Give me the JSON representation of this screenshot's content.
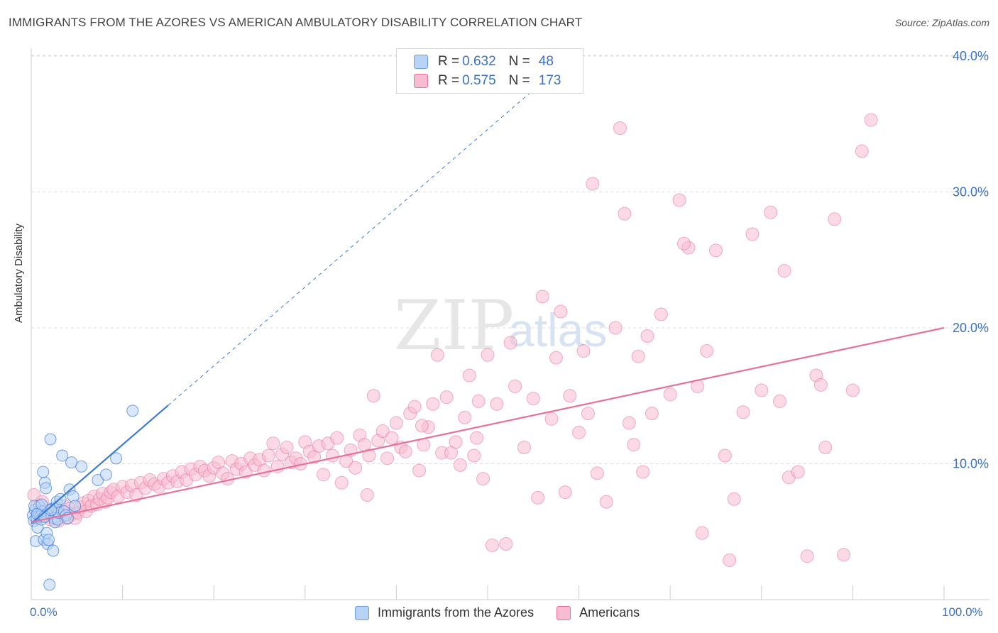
{
  "title": "IMMIGRANTS FROM THE AZORES VS AMERICAN AMBULATORY DISABILITY CORRELATION CHART",
  "source": "Source: ZipAtlas.com",
  "watermark": {
    "zip": "ZIP",
    "atlas": "atlas"
  },
  "colors": {
    "blue": "#3a7bd5",
    "blue_fill": "#b8d3f5",
    "pink": "#e8709a",
    "pink_fill": "#f7bcd0",
    "axis_text": "#3a72c4",
    "grid": "#dcdcdc"
  },
  "legend": {
    "series": [
      {
        "r_label": "R =",
        "r_value": "0.632",
        "n_label": "N =",
        "n_value": "48"
      },
      {
        "r_label": "R =",
        "r_value": "0.575",
        "n_label": "N =",
        "n_value": "173"
      }
    ]
  },
  "chart_data": {
    "type": "scatter",
    "title": "IMMIGRANTS FROM THE AZORES VS AMERICAN AMBULATORY DISABILITY CORRELATION CHART",
    "xlabel": "",
    "ylabel": "Ambulatory Disability",
    "xlim": [
      0,
      100
    ],
    "ylim": [
      0,
      41
    ],
    "x_tick_labels": [
      "0.0%",
      "100.0%"
    ],
    "y_ticks": [
      10,
      20,
      30,
      40
    ],
    "y_tick_labels": [
      "10.0%",
      "20.0%",
      "30.0%",
      "40.0%"
    ],
    "grid": true,
    "legend_position": "bottom",
    "series": [
      {
        "name": "Immigrants from the Azores",
        "color": "#3a7bd5",
        "trend": {
          "x0": 0,
          "y0": 5.6,
          "x1": 15,
          "y1": 14.3,
          "dashed_to_x": 55
        },
        "points": [
          [
            0.2,
            6.2
          ],
          [
            0.3,
            5.8
          ],
          [
            0.4,
            6.6
          ],
          [
            0.5,
            4.3
          ],
          [
            0.6,
            6.0
          ],
          [
            0.7,
            5.3
          ],
          [
            0.8,
            6.4
          ],
          [
            0.9,
            6.9
          ],
          [
            1.0,
            6.1
          ],
          [
            1.1,
            5.9
          ],
          [
            1.2,
            6.5
          ],
          [
            1.3,
            9.4
          ],
          [
            1.4,
            4.4
          ],
          [
            1.5,
            8.6
          ],
          [
            1.6,
            8.2
          ],
          [
            1.7,
            4.9
          ],
          [
            1.8,
            4.1
          ],
          [
            1.9,
            4.4
          ],
          [
            2.0,
            1.1
          ],
          [
            2.1,
            11.8
          ],
          [
            2.2,
            6.3
          ],
          [
            2.3,
            6.7
          ],
          [
            2.4,
            3.6
          ],
          [
            2.5,
            6.0
          ],
          [
            2.6,
            5.7
          ],
          [
            2.7,
            6.8
          ],
          [
            2.8,
            7.2
          ],
          [
            2.9,
            5.9
          ],
          [
            3.0,
            6.4
          ],
          [
            3.2,
            7.4
          ],
          [
            3.4,
            10.6
          ],
          [
            3.6,
            6.5
          ],
          [
            3.8,
            6.2
          ],
          [
            4.0,
            6.0
          ],
          [
            4.2,
            8.1
          ],
          [
            4.4,
            10.1
          ],
          [
            4.6,
            7.6
          ],
          [
            4.8,
            6.9
          ],
          [
            5.5,
            9.8
          ],
          [
            7.3,
            8.8
          ],
          [
            8.2,
            9.2
          ],
          [
            9.3,
            10.4
          ],
          [
            11.1,
            13.9
          ],
          [
            0.35,
            6.9
          ],
          [
            0.65,
            6.3
          ],
          [
            1.15,
            7.0
          ],
          [
            1.45,
            6.1
          ],
          [
            2.15,
            6.6
          ]
        ]
      },
      {
        "name": "Americans",
        "color": "#e8709a",
        "trend": {
          "x0": 0,
          "y0": 5.7,
          "x1": 100,
          "y1": 20.0
        },
        "points": [
          [
            0.3,
            7.7
          ],
          [
            0.6,
            6.8
          ],
          [
            0.9,
            6.2
          ],
          [
            1.2,
            7.2
          ],
          [
            1.5,
            6.5
          ],
          [
            1.8,
            6.1
          ],
          [
            2.1,
            5.9
          ],
          [
            2.4,
            6.6
          ],
          [
            2.7,
            6.2
          ],
          [
            3.0,
            5.8
          ],
          [
            3.3,
            6.4
          ],
          [
            3.6,
            6.9
          ],
          [
            3.9,
            6.0
          ],
          [
            4.2,
            6.7
          ],
          [
            4.5,
            6.3
          ],
          [
            4.8,
            6.0
          ],
          [
            5.1,
            6.4
          ],
          [
            5.4,
            6.8
          ],
          [
            5.7,
            7.1
          ],
          [
            6.0,
            6.5
          ],
          [
            6.3,
            7.3
          ],
          [
            6.6,
            6.9
          ],
          [
            6.9,
            7.6
          ],
          [
            7.2,
            7.0
          ],
          [
            7.5,
            7.4
          ],
          [
            7.8,
            7.8
          ],
          [
            8.1,
            7.2
          ],
          [
            8.4,
            7.5
          ],
          [
            8.7,
            7.9
          ],
          [
            9.0,
            8.1
          ],
          [
            9.5,
            7.6
          ],
          [
            10.0,
            8.3
          ],
          [
            10.5,
            7.9
          ],
          [
            11.0,
            8.4
          ],
          [
            11.5,
            7.7
          ],
          [
            12.0,
            8.6
          ],
          [
            12.5,
            8.2
          ],
          [
            13.0,
            8.8
          ],
          [
            13.5,
            8.5
          ],
          [
            14.0,
            8.3
          ],
          [
            14.5,
            8.9
          ],
          [
            15.0,
            8.6
          ],
          [
            15.5,
            9.1
          ],
          [
            16.0,
            8.7
          ],
          [
            16.5,
            9.4
          ],
          [
            17.0,
            8.8
          ],
          [
            17.5,
            9.6
          ],
          [
            18.0,
            9.2
          ],
          [
            18.5,
            9.8
          ],
          [
            19.0,
            9.5
          ],
          [
            19.5,
            9.1
          ],
          [
            20.0,
            9.7
          ],
          [
            20.5,
            10.1
          ],
          [
            21.0,
            9.3
          ],
          [
            21.5,
            8.9
          ],
          [
            22.0,
            10.2
          ],
          [
            22.5,
            9.6
          ],
          [
            23.0,
            10.0
          ],
          [
            23.5,
            9.4
          ],
          [
            24.0,
            10.4
          ],
          [
            24.5,
            9.9
          ],
          [
            25.0,
            10.3
          ],
          [
            25.5,
            9.5
          ],
          [
            26.0,
            10.6
          ],
          [
            26.5,
            11.5
          ],
          [
            27.0,
            9.8
          ],
          [
            27.5,
            10.7
          ],
          [
            28.0,
            11.2
          ],
          [
            28.5,
            10.1
          ],
          [
            29.0,
            10.4
          ],
          [
            29.5,
            10.0
          ],
          [
            30.0,
            11.6
          ],
          [
            30.5,
            10.9
          ],
          [
            31.0,
            10.5
          ],
          [
            31.5,
            11.3
          ],
          [
            32.0,
            9.2
          ],
          [
            32.5,
            11.5
          ],
          [
            33.0,
            10.6
          ],
          [
            33.5,
            11.9
          ],
          [
            34.0,
            8.6
          ],
          [
            34.5,
            10.2
          ],
          [
            35.0,
            11.0
          ],
          [
            35.5,
            9.7
          ],
          [
            36.0,
            12.1
          ],
          [
            36.5,
            11.4
          ],
          [
            37.0,
            10.6
          ],
          [
            37.5,
            15.0
          ],
          [
            38.0,
            11.7
          ],
          [
            38.5,
            12.4
          ],
          [
            39.0,
            10.4
          ],
          [
            39.5,
            11.9
          ],
          [
            40.0,
            13.0
          ],
          [
            40.5,
            11.2
          ],
          [
            41.0,
            10.9
          ],
          [
            41.5,
            13.7
          ],
          [
            42.0,
            14.2
          ],
          [
            42.5,
            9.5
          ],
          [
            43.0,
            11.4
          ],
          [
            43.5,
            12.7
          ],
          [
            44.0,
            14.4
          ],
          [
            44.5,
            18.0
          ],
          [
            45.0,
            10.8
          ],
          [
            45.5,
            14.9
          ],
          [
            46.0,
            10.8
          ],
          [
            46.5,
            11.6
          ],
          [
            47.0,
            9.9
          ],
          [
            47.5,
            13.4
          ],
          [
            48.0,
            16.5
          ],
          [
            48.5,
            10.6
          ],
          [
            49.0,
            14.6
          ],
          [
            49.5,
            8.9
          ],
          [
            50.5,
            4.0
          ],
          [
            51.0,
            14.4
          ],
          [
            52.0,
            4.1
          ],
          [
            53.0,
            15.7
          ],
          [
            54.0,
            11.2
          ],
          [
            55.0,
            14.8
          ],
          [
            56.0,
            22.3
          ],
          [
            57.0,
            13.3
          ],
          [
            58.0,
            21.2
          ],
          [
            59.0,
            15.0
          ],
          [
            60.0,
            12.3
          ],
          [
            61.0,
            13.7
          ],
          [
            62.0,
            9.3
          ],
          [
            63.0,
            7.2
          ],
          [
            64.0,
            20.0
          ],
          [
            65.0,
            28.4
          ],
          [
            66.0,
            11.4
          ],
          [
            67.0,
            9.4
          ],
          [
            68.0,
            13.7
          ],
          [
            69.0,
            21.0
          ],
          [
            70.0,
            15.1
          ],
          [
            71.0,
            29.4
          ],
          [
            72.0,
            25.9
          ],
          [
            73.0,
            15.7
          ],
          [
            74.0,
            18.3
          ],
          [
            75.0,
            25.7
          ],
          [
            76.0,
            10.6
          ],
          [
            77.0,
            7.4
          ],
          [
            78.0,
            13.8
          ],
          [
            79.0,
            26.9
          ],
          [
            80.0,
            15.4
          ],
          [
            81.0,
            28.5
          ],
          [
            82.0,
            14.6
          ],
          [
            83.0,
            9.0
          ],
          [
            84.0,
            9.4
          ],
          [
            85.0,
            3.2
          ],
          [
            86.0,
            16.5
          ],
          [
            87.0,
            11.2
          ],
          [
            88.0,
            28.0
          ],
          [
            89.0,
            3.3
          ],
          [
            90.0,
            15.4
          ],
          [
            91.0,
            33.0
          ],
          [
            92.0,
            35.3
          ],
          [
            64.5,
            34.7
          ],
          [
            61.5,
            30.6
          ],
          [
            82.5,
            24.2
          ],
          [
            55.5,
            7.5
          ],
          [
            58.5,
            7.9
          ],
          [
            73.5,
            4.9
          ],
          [
            76.5,
            2.9
          ],
          [
            86.5,
            15.8
          ],
          [
            66.5,
            17.9
          ],
          [
            57.5,
            17.8
          ],
          [
            52.5,
            18.9
          ],
          [
            50.0,
            18.0
          ],
          [
            48.8,
            11.9
          ],
          [
            36.8,
            7.7
          ],
          [
            42.8,
            12.8
          ],
          [
            60.5,
            18.3
          ],
          [
            67.5,
            19.4
          ],
          [
            65.5,
            13.0
          ],
          [
            71.5,
            26.2
          ]
        ]
      }
    ]
  }
}
